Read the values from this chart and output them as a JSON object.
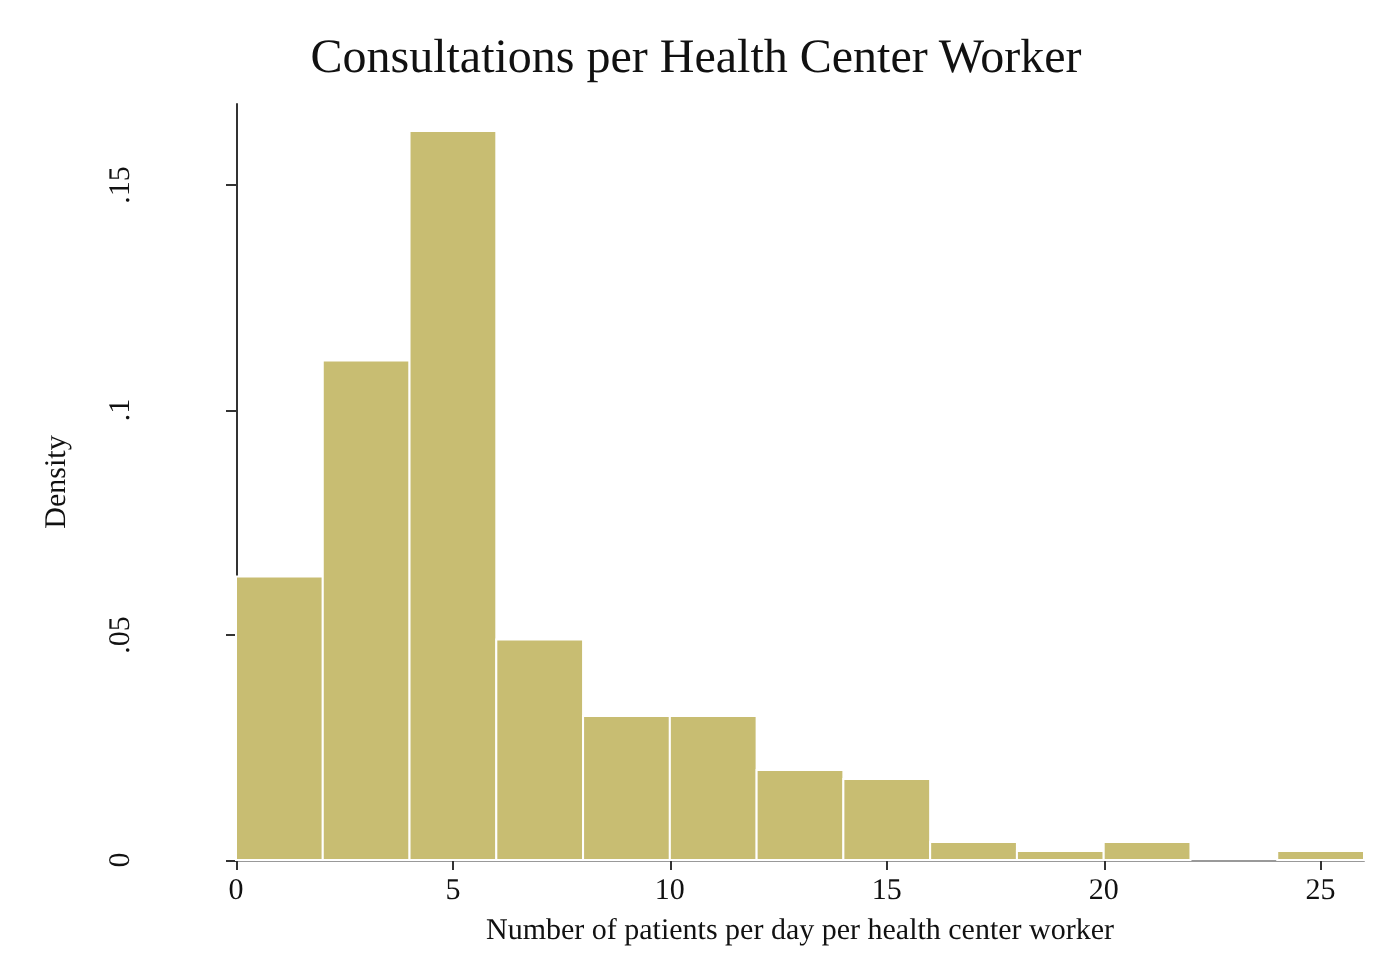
{
  "chart_data": {
    "type": "histogram",
    "title": "Consultations per Health Center Worker",
    "xlabel": "Number of patients per day per health center worker",
    "ylabel": "Density",
    "bins": [
      0,
      2,
      4,
      6,
      8,
      10,
      12,
      14,
      16,
      18,
      20,
      22,
      24,
      26
    ],
    "values": [
      0.063,
      0.111,
      0.162,
      0.049,
      0.032,
      0.032,
      0.02,
      0.018,
      0.004,
      0.002,
      0.004,
      0,
      0.002
    ],
    "color": "#c8bd72",
    "xlim": [
      0,
      26
    ],
    "xticks": [
      0,
      5,
      10,
      15,
      20,
      25
    ],
    "ylim": [
      0,
      0.168
    ],
    "yticks": [
      0,
      {
        "value": 0.05,
        "label": ".05"
      },
      {
        "value": 0.1,
        "label": ".1"
      },
      {
        "value": 0.15,
        "label": ".15"
      }
    ],
    "grid": false
  }
}
